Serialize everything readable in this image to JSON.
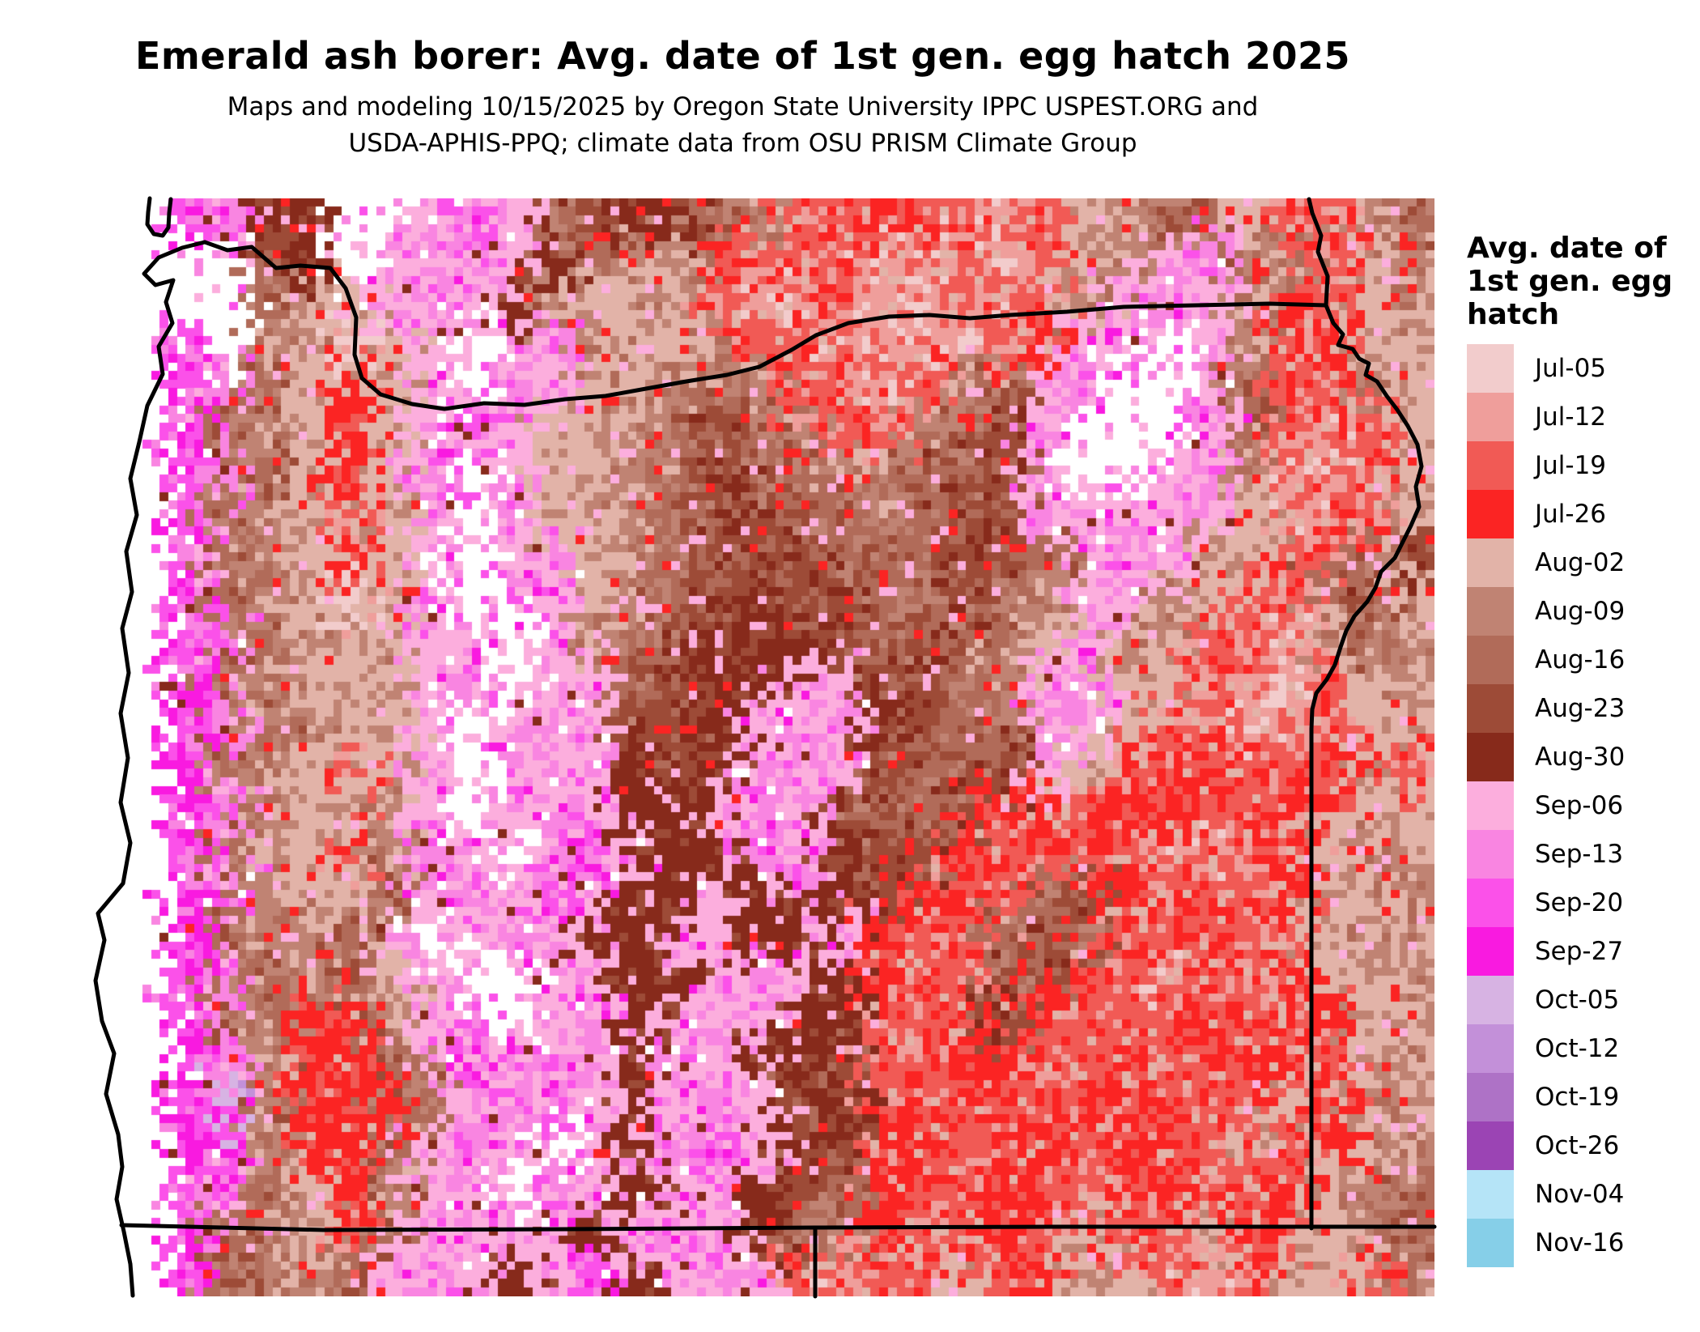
{
  "header": {
    "title": "Emerald ash borer: Avg. date of 1st gen. egg hatch 2025",
    "subtitle_lines": [
      "Maps and modeling 10/15/2025 by Oregon State University IPPC USPEST.ORG and",
      "USDA-APHIS-PPQ; climate data from OSU PRISM Climate Group"
    ]
  },
  "legend": {
    "title_lines": [
      "Avg. date of",
      "1st gen. egg",
      "hatch"
    ],
    "items": [
      {
        "label": "Jul-05",
        "color": "#f2cccc"
      },
      {
        "label": "Jul-12",
        "color": "#ef9e9b"
      },
      {
        "label": "Jul-19",
        "color": "#f15a55"
      },
      {
        "label": "Jul-26",
        "color": "#fb2423"
      },
      {
        "label": "Aug-02",
        "color": "#e2b3a8"
      },
      {
        "label": "Aug-09",
        "color": "#c08373"
      },
      {
        "label": "Aug-16",
        "color": "#b16b59"
      },
      {
        "label": "Aug-23",
        "color": "#9d4b37"
      },
      {
        "label": "Aug-30",
        "color": "#872a1b"
      },
      {
        "label": "Sep-06",
        "color": "#fcaedd"
      },
      {
        "label": "Sep-13",
        "color": "#f985e1"
      },
      {
        "label": "Sep-20",
        "color": "#fb51e9"
      },
      {
        "label": "Sep-27",
        "color": "#f91ae0"
      },
      {
        "label": "Oct-05",
        "color": "#d7b3e3"
      },
      {
        "label": "Oct-12",
        "color": "#c390d9"
      },
      {
        "label": "Oct-19",
        "color": "#ae72c6"
      },
      {
        "label": "Oct-26",
        "color": "#9b44b4"
      },
      {
        "label": "Nov-04",
        "color": "#b5e4f7"
      },
      {
        "label": "Nov-16",
        "color": "#86cfe8"
      }
    ]
  },
  "map": {
    "region": "Oregon, USA",
    "no_data_color": "#ffffff",
    "grid_legend": "chars 0-9,a-i map to legend items 1-19; W = no-data white; . = ocean",
    "grid": [
      ".ba88WW9a96788652232212456642256",
      ".WW78W99a98654322211212459a65245",
      ".WW6549a98544521121112259a953245",
      ".bW54049W9a5445221111239aW952344",
      ".ba64349Wa9445652212569aWWa62254",
      ".b654349b9445676522567aWWW962124",
      ".ba6434aW94456766556779WW9a51124",
      ".b654249Wa445677665676a99a941224",
      ".a654349W9a4567776667769a9542267",
      ".b65404aWb9456787766765995422674",
      ".ba654499W9567788767654954221465",
      ".b654459aW9967889977659a44211245",
      ".ba65449W9a977899a8766a942211244",
      ".c654249Wa9a878aa976679422322342",
      ".ba54459W9a9889a9766733233223244",
      ".b64425a9Wab988aa877322322123454",
      ".ba54469a9b988989873226732223445",
      ".c65569W9a9889988932267622322454",
      ".ba65649WWa9889a9832276321223445",
      ".b653359aW9a89a98822373222322344",
      ".ca53369b9a98a988722332232233245",
      ".bd632369ab989a97832232323224354",
      ".cb53369a9W98ab98723223232242345",
      ".ba643599Wa989a87632232223223456",
      ".b654269a9989a986532232422432456",
      ".b65569a989b89a92122423442124425"
    ],
    "borders": [
      {
        "name": "coastline",
        "points": [
          [
            253,
            299
          ],
          [
            225,
            306
          ],
          [
            196,
            318
          ],
          [
            178,
            338
          ],
          [
            192,
            352
          ],
          [
            214,
            346
          ],
          [
            205,
            373
          ],
          [
            213,
            399
          ],
          [
            196,
            428
          ],
          [
            201,
            462
          ],
          [
            182,
            501
          ],
          [
            172,
            546
          ],
          [
            161,
            591
          ],
          [
            169,
            636
          ],
          [
            156,
            681
          ],
          [
            163,
            731
          ],
          [
            151,
            776
          ],
          [
            159,
            831
          ],
          [
            149,
            881
          ],
          [
            158,
            936
          ],
          [
            149,
            991
          ],
          [
            161,
            1041
          ],
          [
            152,
            1091
          ],
          [
            121,
            1128
          ],
          [
            129,
            1161
          ],
          [
            118,
            1211
          ],
          [
            126,
            1261
          ],
          [
            141,
            1301
          ],
          [
            131,
            1351
          ],
          [
            146,
            1401
          ],
          [
            151,
            1441
          ],
          [
            144,
            1481
          ],
          [
            153,
            1521
          ],
          [
            161,
            1561
          ],
          [
            164,
            1600
          ]
        ]
      },
      {
        "name": "columbia-mouth-spit",
        "points": [
          [
            185,
            245
          ],
          [
            183,
            262
          ],
          [
            182,
            277
          ],
          [
            190,
            289
          ],
          [
            201,
            291
          ],
          [
            208,
            281
          ],
          [
            209,
            263
          ],
          [
            211,
            246
          ]
        ]
      },
      {
        "name": "washington-border-columbia-river",
        "points": [
          [
            253,
            299
          ],
          [
            281,
            309
          ],
          [
            311,
            305
          ],
          [
            341,
            331
          ],
          [
            371,
            328
          ],
          [
            408,
            331
          ],
          [
            427,
            356
          ],
          [
            440,
            392
          ],
          [
            438,
            438
          ],
          [
            447,
            467
          ],
          [
            470,
            487
          ],
          [
            509,
            499
          ],
          [
            549,
            505
          ],
          [
            598,
            498
          ],
          [
            648,
            500
          ],
          [
            698,
            493
          ],
          [
            748,
            489
          ],
          [
            798,
            480
          ],
          [
            848,
            471
          ],
          [
            898,
            463
          ],
          [
            938,
            453
          ],
          [
            978,
            432
          ],
          [
            1008,
            414
          ],
          [
            1048,
            399
          ],
          [
            1098,
            391
          ],
          [
            1148,
            389
          ],
          [
            1198,
            393
          ],
          [
            1248,
            389
          ],
          [
            1318,
            385
          ],
          [
            1388,
            379
          ],
          [
            1478,
            377
          ],
          [
            1568,
            375
          ],
          [
            1638,
            377
          ]
        ]
      },
      {
        "name": "idaho-border-snake-river",
        "points": [
          [
            1617,
            246
          ],
          [
            1621,
            263
          ],
          [
            1632,
            291
          ],
          [
            1628,
            311
          ],
          [
            1640,
            341
          ],
          [
            1638,
            377
          ],
          [
            1647,
            399
          ],
          [
            1659,
            413
          ],
          [
            1653,
            426
          ],
          [
            1671,
            431
          ],
          [
            1679,
            443
          ],
          [
            1691,
            449
          ],
          [
            1687,
            463
          ],
          [
            1701,
            471
          ],
          [
            1713,
            489
          ],
          [
            1726,
            506
          ],
          [
            1739,
            526
          ],
          [
            1751,
            549
          ],
          [
            1756,
            576
          ],
          [
            1749,
            601
          ],
          [
            1753,
            626
          ],
          [
            1743,
            649
          ],
          [
            1723,
            689
          ],
          [
            1706,
            706
          ],
          [
            1699,
            726
          ],
          [
            1689,
            743
          ],
          [
            1673,
            761
          ],
          [
            1663,
            779
          ],
          [
            1656,
            799
          ],
          [
            1649,
            821
          ],
          [
            1639,
            839
          ],
          [
            1626,
            856
          ],
          [
            1621,
            876
          ],
          [
            1620,
            900
          ],
          [
            1620,
            1517
          ]
        ]
      },
      {
        "name": "california-nevada-border",
        "points": [
          [
            150,
            1513
          ],
          [
            400,
            1519
          ],
          [
            700,
            1518
          ],
          [
            1007,
            1516
          ],
          [
            1300,
            1515
          ],
          [
            1772,
            1515
          ]
        ]
      },
      {
        "name": "california-nevada-junction",
        "points": [
          [
            1007,
            1516
          ],
          [
            1007,
            1601
          ]
        ]
      }
    ]
  }
}
